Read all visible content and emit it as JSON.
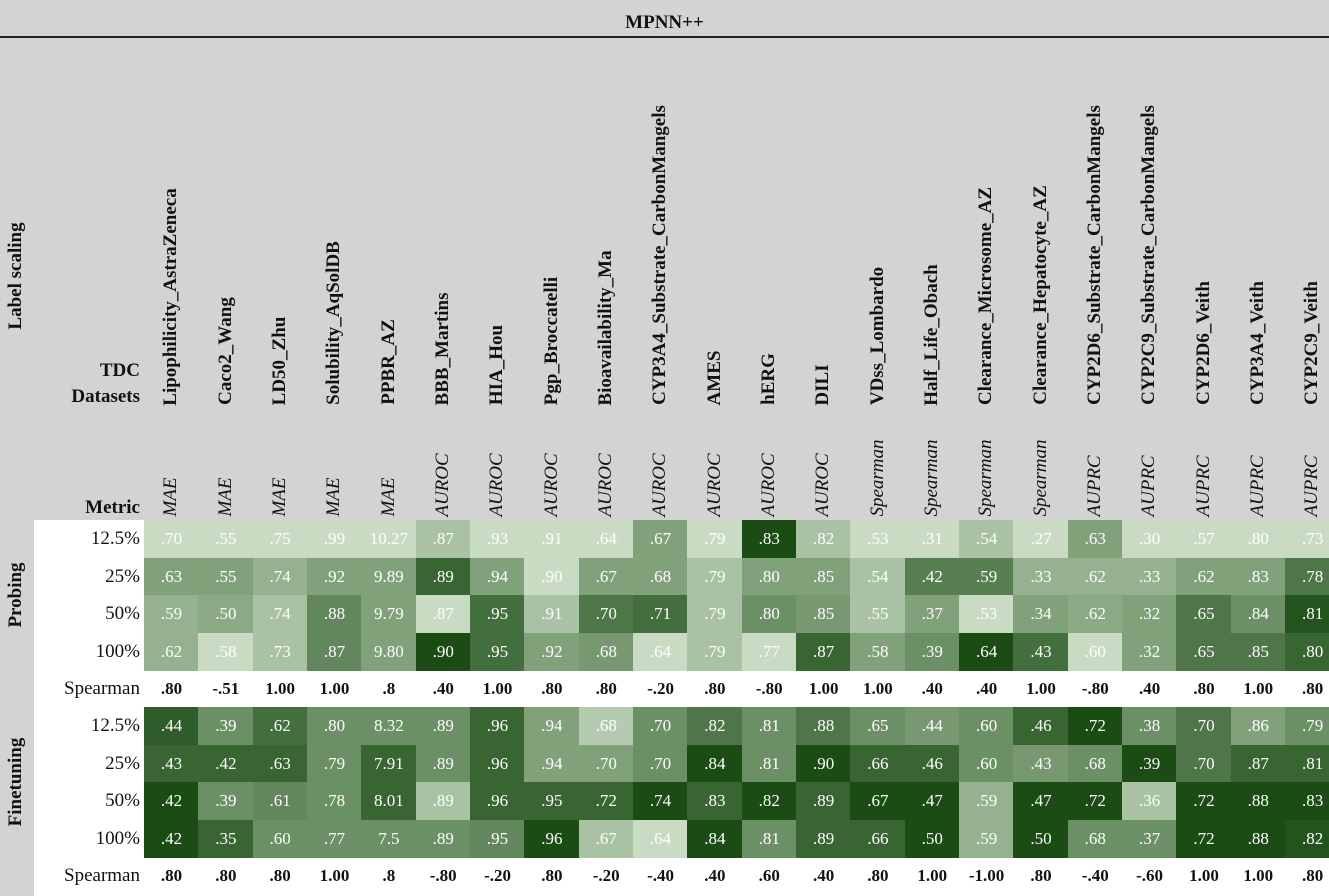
{
  "chart_data": {
    "type": "heatmap",
    "title": "MPNN++",
    "column_group_label": "Label scaling",
    "dataset_header": "TDC Datasets",
    "metric_header": "Metric",
    "datasets": [
      "Lipophilicity_AstraZeneca",
      "Caco2_Wang",
      "LD50_Zhu",
      "Solubility_AqSolDB",
      "PPBR_AZ",
      "BBB_Martins",
      "HIA_Hou",
      "Pgp_Broccatelli",
      "Bioavailability_Ma",
      "CYP3A4_Substrate_CarbonMangels",
      "AMES",
      "hERG",
      "DILI",
      "VDss_Lombardo",
      "Half_Life_Obach",
      "Clearance_Microsome_AZ",
      "Clearance_Hepatocyte_AZ",
      "CYP2D6_Substrate_CarbonMangels",
      "CYP2C9_Substrate_CarbonMangels",
      "CYP2D6_Veith",
      "CYP3A4_Veith",
      "CYP2C9_Veith"
    ],
    "metrics": [
      "MAE",
      "MAE",
      "MAE",
      "MAE",
      "MAE",
      "AUROC",
      "AUROC",
      "AUROC",
      "AUROC",
      "AUROC",
      "AUROC",
      "AUROC",
      "AUROC",
      "Spearman",
      "Spearman",
      "Spearman",
      "Spearman",
      "AUPRC",
      "AUPRC",
      "AUPRC",
      "AUPRC",
      "AUPRC"
    ],
    "groups": [
      {
        "name": "Probing",
        "rows": [
          {
            "label": "12.5%",
            "values": [
              ".70",
              ".55",
              ".75",
              ".99",
              "10.27",
              ".87",
              ".93",
              ".91",
              ".64",
              ".67",
              ".79",
              ".83",
              ".82",
              ".53",
              ".31",
              ".54",
              ".27",
              ".63",
              ".30",
              ".57",
              ".80",
              ".73"
            ],
            "shades": [
              0.15,
              0.15,
              0.15,
              0.15,
              0.15,
              0.3,
              0.15,
              0.15,
              0.15,
              0.5,
              0.15,
              1.0,
              0.3,
              0.15,
              0.15,
              0.3,
              0.15,
              0.5,
              0.15,
              0.15,
              0.15,
              0.15
            ]
          },
          {
            "label": "25%",
            "values": [
              ".63",
              ".55",
              ".74",
              ".92",
              "9.89",
              ".89",
              ".94",
              ".90",
              ".67",
              ".68",
              ".79",
              ".80",
              ".85",
              ".54",
              ".42",
              ".59",
              ".33",
              ".62",
              ".33",
              ".62",
              ".83",
              ".78"
            ],
            "shades": [
              0.5,
              0.5,
              0.4,
              0.5,
              0.5,
              0.85,
              0.5,
              0.15,
              0.5,
              0.5,
              0.3,
              0.5,
              0.5,
              0.3,
              0.7,
              0.7,
              0.4,
              0.4,
              0.4,
              0.5,
              0.5,
              0.75
            ]
          },
          {
            "label": "50%",
            "values": [
              ".59",
              ".50",
              ".74",
              ".88",
              "9.79",
              ".87",
              ".95",
              ".91",
              ".70",
              ".71",
              ".79",
              ".80",
              ".85",
              ".55",
              ".37",
              ".53",
              ".34",
              ".62",
              ".32",
              ".65",
              ".84",
              ".81"
            ],
            "shades": [
              0.4,
              0.45,
              0.3,
              0.65,
              0.5,
              0.15,
              0.8,
              0.3,
              0.75,
              0.8,
              0.3,
              0.6,
              0.55,
              0.3,
              0.5,
              0.15,
              0.5,
              0.45,
              0.5,
              0.75,
              0.6,
              0.95
            ]
          },
          {
            "label": "100%",
            "values": [
              ".62",
              ".58",
              ".73",
              ".87",
              "9.80",
              ".90",
              ".95",
              ".92",
              ".68",
              ".64",
              ".79",
              ".77",
              ".87",
              ".58",
              ".39",
              ".64",
              ".43",
              ".60",
              ".32",
              ".65",
              ".85",
              ".80"
            ],
            "shades": [
              0.4,
              0.15,
              0.3,
              0.65,
              0.5,
              1.0,
              0.8,
              0.5,
              0.55,
              0.15,
              0.3,
              0.15,
              0.85,
              0.5,
              0.6,
              1.0,
              0.8,
              0.15,
              0.5,
              0.75,
              0.75,
              0.85
            ]
          }
        ],
        "spearman": {
          "label": "Spearman",
          "values": [
            ".80",
            "-.51",
            "1.00",
            "1.00",
            ".8",
            ".40",
            "1.00",
            ".80",
            ".80",
            "-.20",
            ".80",
            "-.80",
            "1.00",
            "1.00",
            ".40",
            ".40",
            "1.00",
            "-.80",
            ".40",
            ".80",
            "1.00",
            ".80"
          ]
        }
      },
      {
        "name": "Finetuning",
        "rows": [
          {
            "label": "12.5%",
            "values": [
              ".44",
              ".39",
              ".62",
              ".80",
              "8.32",
              ".89",
              ".96",
              ".94",
              ".68",
              ".70",
              ".82",
              ".81",
              ".88",
              ".65",
              ".44",
              ".60",
              ".46",
              ".72",
              ".38",
              ".70",
              ".86",
              ".79"
            ],
            "shades": [
              0.9,
              0.6,
              0.8,
              0.6,
              0.6,
              0.6,
              0.85,
              0.5,
              0.25,
              0.6,
              0.75,
              0.6,
              0.75,
              0.6,
              0.55,
              0.6,
              0.85,
              1.0,
              0.6,
              0.75,
              0.5,
              0.6
            ]
          },
          {
            "label": "25%",
            "values": [
              ".43",
              ".42",
              ".63",
              ".79",
              "7.91",
              ".89",
              ".96",
              ".94",
              ".70",
              ".70",
              ".84",
              ".81",
              ".90",
              ".66",
              ".46",
              ".60",
              ".43",
              ".68",
              ".39",
              ".70",
              ".87",
              ".81"
            ],
            "shades": [
              0.85,
              0.85,
              0.85,
              0.6,
              0.85,
              0.6,
              0.85,
              0.5,
              0.5,
              0.6,
              1.0,
              0.6,
              1.0,
              0.85,
              0.85,
              0.6,
              0.55,
              0.6,
              1.0,
              0.75,
              0.85,
              0.85
            ]
          },
          {
            "label": "50%",
            "values": [
              ".42",
              ".39",
              ".61",
              ".78",
              "8.01",
              ".89",
              ".96",
              ".95",
              ".72",
              ".74",
              ".83",
              ".82",
              ".89",
              ".67",
              ".47",
              ".59",
              ".47",
              ".72",
              ".36",
              ".72",
              ".88",
              ".83"
            ],
            "shades": [
              1.0,
              0.6,
              0.65,
              0.6,
              0.85,
              0.3,
              0.85,
              0.85,
              0.85,
              1.0,
              0.85,
              1.0,
              0.85,
              1.0,
              1.0,
              0.4,
              1.0,
              1.0,
              0.3,
              1.0,
              1.0,
              1.0
            ]
          },
          {
            "label": "100%",
            "values": [
              ".42",
              ".35",
              ".60",
              ".77",
              "7.5",
              ".89",
              ".95",
              ".96",
              ".67",
              ".64",
              ".84",
              ".81",
              ".89",
              ".66",
              ".50",
              ".59",
              ".50",
              ".68",
              ".37",
              ".72",
              ".88",
              ".82"
            ],
            "shades": [
              1.0,
              0.85,
              0.6,
              0.6,
              0.6,
              0.6,
              0.65,
              1.0,
              0.3,
              0.15,
              1.0,
              0.6,
              0.85,
              0.85,
              1.0,
              0.4,
              1.0,
              0.6,
              0.6,
              1.0,
              1.0,
              0.95
            ]
          }
        ],
        "spearman": {
          "label": "Spearman",
          "values": [
            ".80",
            ".80",
            ".80",
            "1.00",
            ".8",
            "-.80",
            "-.20",
            ".80",
            "-.20",
            "-.40",
            ".40",
            ".60",
            ".40",
            ".80",
            "1.00",
            "-1.00",
            ".80",
            "-.40",
            "-.60",
            "1.00",
            "1.00",
            ".80"
          ]
        }
      }
    ]
  }
}
